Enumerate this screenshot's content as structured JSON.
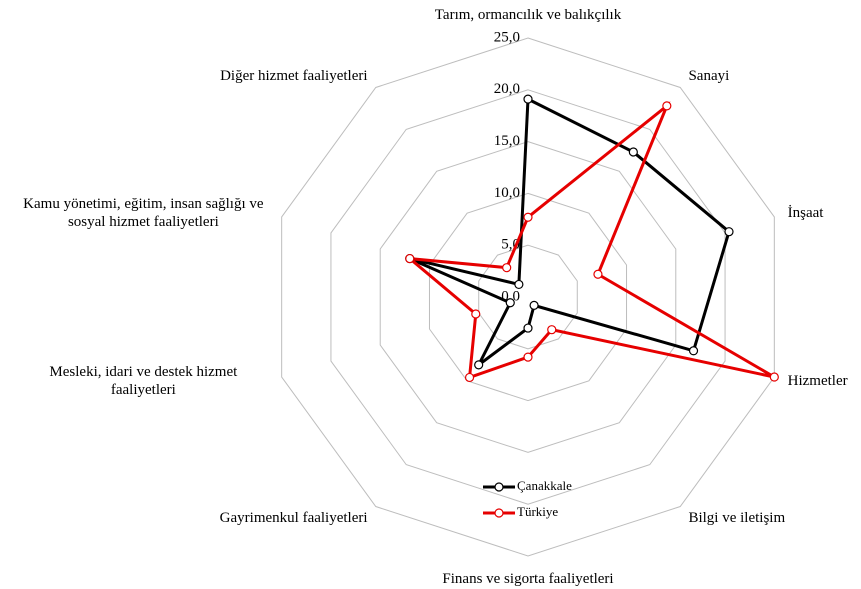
{
  "chart_data": {
    "type": "radar",
    "categories": [
      "Tarım, ormancılık ve balıkçılık",
      "Sanayi",
      "İnşaat",
      "Hizmetler",
      "Bilgi ve iletişim",
      "Finans ve sigorta faaliyetleri",
      "Gayrimenkul faaliyetleri",
      "Mesleki, idari ve destek hizmet faaliyetleri",
      "Kamu yönetimi, eğitim, insan sağlığı ve sosyal hizmet faaliyetleri",
      "Diğer hizmet faaliyetleri"
    ],
    "series": [
      {
        "name": "Çanakkale",
        "color": "#000000",
        "values": [
          19.1,
          17.3,
          20.4,
          16.8,
          1.0,
          3.0,
          8.1,
          1.8,
          12.0,
          1.5
        ]
      },
      {
        "name": "Türkiye",
        "color": "#e60000",
        "values": [
          7.7,
          22.8,
          7.1,
          25.0,
          3.9,
          5.8,
          9.6,
          5.3,
          12.0,
          3.5
        ]
      }
    ],
    "ylim": [
      0,
      25
    ],
    "yticks": [
      {
        "value": 0,
        "label": "0,0"
      },
      {
        "value": 5,
        "label": "5,0"
      },
      {
        "value": 10,
        "label": "10,0"
      },
      {
        "value": 15,
        "label": "15,0"
      },
      {
        "value": 20,
        "label": "20,0"
      },
      {
        "value": 25,
        "label": "25,0"
      }
    ],
    "grid": true,
    "legend": "bottom"
  }
}
